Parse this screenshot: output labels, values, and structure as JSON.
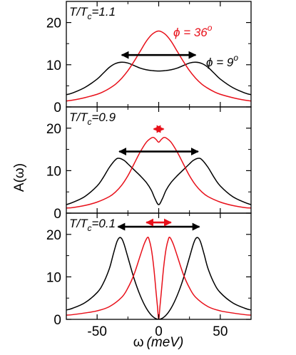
{
  "colors": {
    "phi9": "#000000",
    "phi36": "#e8101a",
    "frame": "#000000"
  },
  "xlabel": {
    "symbol": "ω",
    "units": "(meV)"
  },
  "ylabel": {
    "symbol": "A",
    "arg": "(ω)"
  },
  "legend": {
    "phi36": {
      "symbol": "ϕ",
      "eq": " = 36",
      "deg": "o"
    },
    "phi9": {
      "symbol": "ϕ",
      "eq": " = 9",
      "deg": "o"
    }
  },
  "chart_data": [
    {
      "type": "line",
      "label": {
        "t": "T/T",
        "sub": "c",
        "rest": "=1.1"
      },
      "xlim": [
        -75,
        75
      ],
      "ylim": [
        0,
        25
      ],
      "xticks": [
        -50,
        0,
        50
      ],
      "yticks": [
        0,
        10,
        20
      ],
      "series": [
        {
          "key": "phi9",
          "x": [
            -75,
            -70,
            -60,
            -50,
            -45,
            -40,
            -35,
            -30,
            -25,
            -20,
            -15,
            -10,
            -5,
            0,
            5,
            10,
            15,
            20,
            25,
            30,
            35,
            40,
            45,
            50,
            60,
            70,
            75
          ],
          "y": [
            2.9,
            3.3,
            4.6,
            6.6,
            8.0,
            9.4,
            10.3,
            10.6,
            10.4,
            9.8,
            9.2,
            8.8,
            8.6,
            8.5,
            8.6,
            8.8,
            9.2,
            9.8,
            10.4,
            10.6,
            10.3,
            9.4,
            8.0,
            6.6,
            4.6,
            3.3,
            2.9
          ]
        },
        {
          "key": "phi36",
          "x": [
            -75,
            -70,
            -60,
            -50,
            -45,
            -40,
            -35,
            -30,
            -25,
            -20,
            -15,
            -10,
            -5,
            0,
            5,
            10,
            15,
            20,
            25,
            30,
            35,
            40,
            45,
            50,
            60,
            70,
            75
          ],
          "y": [
            1.4,
            1.6,
            2.2,
            3.0,
            3.6,
            4.4,
            5.4,
            6.8,
            8.6,
            10.8,
            13.2,
            15.6,
            17.3,
            18.0,
            17.3,
            15.6,
            13.2,
            10.8,
            8.6,
            6.8,
            5.4,
            4.4,
            3.6,
            3.0,
            2.2,
            1.6,
            1.4
          ]
        }
      ],
      "arrows": [
        {
          "key": "phi9",
          "x1": -30,
          "x2": 30,
          "y": 12.3
        }
      ]
    },
    {
      "type": "line",
      "label": {
        "t": "T/T",
        "sub": "c",
        "rest": "=0.9"
      },
      "xlim": [
        -75,
        75
      ],
      "ylim": [
        0,
        25
      ],
      "xticks": [
        -50,
        0,
        50
      ],
      "yticks": [
        0,
        10,
        20
      ],
      "series": [
        {
          "key": "phi9",
          "x": [
            -75,
            -70,
            -60,
            -50,
            -45,
            -40,
            -35,
            -32,
            -28,
            -25,
            -20,
            -15,
            -10,
            -6,
            -3,
            0,
            3,
            6,
            10,
            15,
            20,
            25,
            28,
            32,
            35,
            40,
            45,
            50,
            60,
            70,
            75
          ],
          "y": [
            2.0,
            2.5,
            3.9,
            6.4,
            8.4,
            10.8,
            12.6,
            12.9,
            12.4,
            11.6,
            10.2,
            8.8,
            7.2,
            5.4,
            3.4,
            2.0,
            3.4,
            5.4,
            7.2,
            8.8,
            10.2,
            11.6,
            12.4,
            12.9,
            12.6,
            10.8,
            8.4,
            6.4,
            3.9,
            2.5,
            2.0
          ]
        },
        {
          "key": "phi36",
          "x": [
            -75,
            -70,
            -60,
            -50,
            -40,
            -35,
            -30,
            -25,
            -20,
            -15,
            -10,
            -6,
            -4,
            -2,
            0,
            2,
            4,
            6,
            10,
            15,
            20,
            25,
            30,
            35,
            40,
            50,
            60,
            70,
            75
          ],
          "y": [
            1.2,
            1.3,
            1.8,
            2.6,
            3.9,
            5.0,
            6.6,
            8.8,
            11.6,
            14.4,
            16.7,
            17.7,
            17.8,
            17.3,
            16.7,
            17.3,
            17.8,
            17.7,
            16.7,
            14.4,
            11.6,
            8.8,
            6.6,
            5.0,
            3.9,
            2.6,
            1.8,
            1.3,
            1.2
          ]
        }
      ],
      "arrows": [
        {
          "key": "phi9",
          "x1": -32,
          "x2": 32,
          "y": 14.5
        },
        {
          "key": "phi36",
          "x1": -4,
          "x2": 4,
          "y": 19.8
        }
      ]
    },
    {
      "type": "line",
      "label": {
        "t": "T/T",
        "sub": "c",
        "rest": "=0.1"
      },
      "xlim": [
        -75,
        75
      ],
      "ylim": [
        0,
        25
      ],
      "xticks": [
        -50,
        0,
        50
      ],
      "yticks": [
        0,
        10,
        20
      ],
      "series": [
        {
          "key": "phi9",
          "x": [
            -75,
            -70,
            -60,
            -50,
            -45,
            -40,
            -37,
            -34,
            -32,
            -30,
            -28,
            -25,
            -20,
            -15,
            -10,
            -5,
            0,
            5,
            10,
            15,
            20,
            25,
            28,
            30,
            32,
            34,
            37,
            40,
            45,
            50,
            60,
            70,
            75
          ],
          "y": [
            2.2,
            2.6,
            3.9,
            6.3,
            8.5,
            12.0,
            15.2,
            18.2,
            19.2,
            19.0,
            17.6,
            14.6,
            9.6,
            5.6,
            2.6,
            0.7,
            0.0,
            0.7,
            2.6,
            5.6,
            9.6,
            14.6,
            17.6,
            19.0,
            19.2,
            18.2,
            15.2,
            12.0,
            8.5,
            6.3,
            3.9,
            2.6,
            2.2
          ]
        },
        {
          "key": "phi36",
          "x": [
            -75,
            -70,
            -60,
            -50,
            -40,
            -30,
            -25,
            -20,
            -15,
            -12,
            -10,
            -9,
            -8,
            -6,
            -4,
            -2,
            -1,
            0,
            1,
            2,
            4,
            6,
            8,
            9,
            10,
            12,
            15,
            20,
            25,
            30,
            40,
            50,
            60,
            70,
            75
          ],
          "y": [
            1.0,
            1.1,
            1.5,
            2.0,
            3.0,
            5.2,
            7.4,
            10.6,
            15.0,
            17.6,
            18.9,
            19.3,
            19.0,
            16.6,
            12.2,
            6.0,
            3.0,
            0.0,
            3.0,
            6.0,
            12.2,
            16.6,
            19.0,
            19.3,
            18.9,
            17.6,
            15.0,
            10.6,
            7.4,
            5.2,
            3.0,
            2.0,
            1.5,
            1.1,
            1.0
          ]
        }
      ],
      "arrows": [
        {
          "key": "phi9",
          "x1": -33,
          "x2": 33,
          "y": 21.8
        },
        {
          "key": "phi36",
          "x1": -10,
          "x2": 10,
          "y": 22.8
        }
      ]
    }
  ]
}
